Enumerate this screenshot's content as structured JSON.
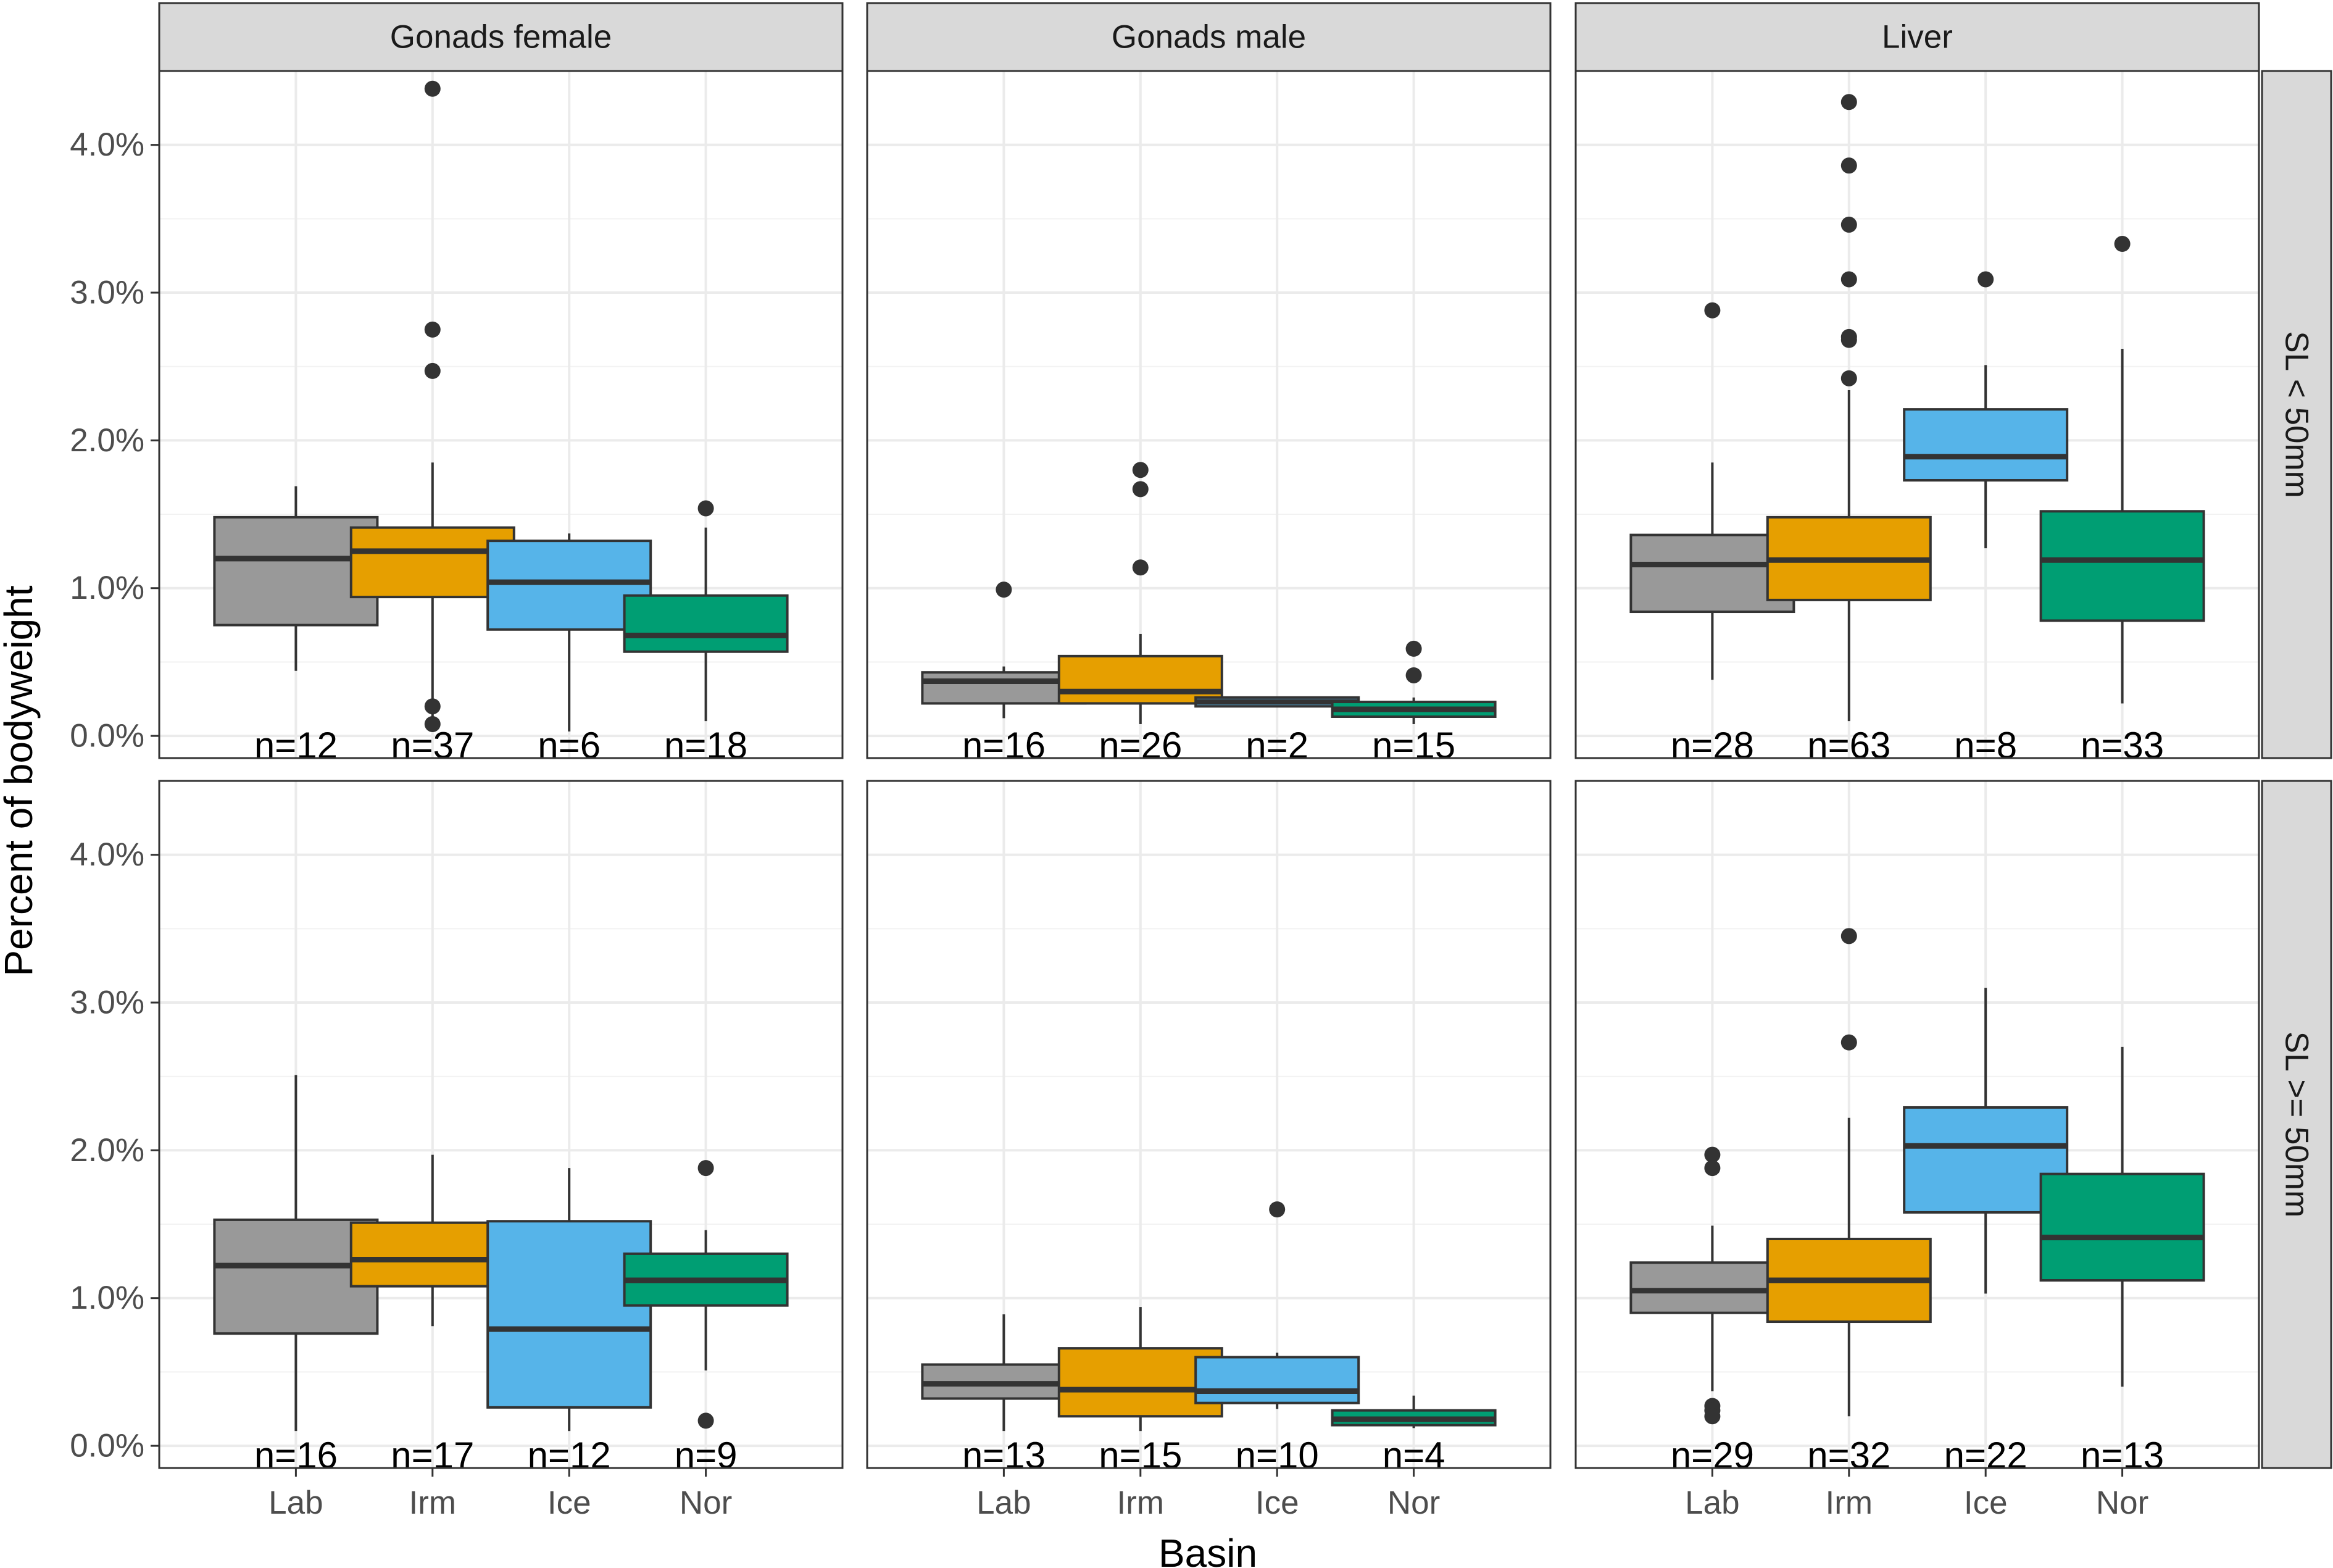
{
  "chart_data": {
    "type": "boxplot",
    "facet_columns": [
      "Gonads female",
      "Gonads male",
      "Liver"
    ],
    "facet_rows": [
      "SL < 50mm",
      "SL >= 50mm"
    ],
    "categories": [
      "Lab",
      "Irm",
      "Ice",
      "Nor"
    ],
    "colors": {
      "Lab": "#999999",
      "Irm": "#E69F00",
      "Ice": "#56B4E9",
      "Nor": "#009E73"
    },
    "xlabel": "Basin",
    "ylabel": "Percent of bodyweight",
    "ylim": [
      -0.15,
      4.5
    ],
    "yticks": [
      0,
      1,
      2,
      3,
      4
    ],
    "ytick_labels": [
      "0.0%",
      "1.0%",
      "2.0%",
      "3.0%",
      "4.0%"
    ],
    "panels": [
      {
        "row": 0,
        "col": 0,
        "boxes": [
          {
            "basin": "Lab",
            "low": 0.44,
            "q1": 0.75,
            "median": 1.2,
            "q3": 1.48,
            "high": 1.69,
            "outliers": [],
            "n_label": "n=12"
          },
          {
            "basin": "Irm",
            "low": 0.12,
            "q1": 0.94,
            "median": 1.25,
            "q3": 1.41,
            "high": 1.85,
            "outliers": [
              4.38,
              2.75,
              2.47,
              0.2,
              0.08
            ],
            "n_label": "n=37"
          },
          {
            "basin": "Ice",
            "low": 0.03,
            "q1": 0.72,
            "median": 1.04,
            "q3": 1.32,
            "high": 1.37,
            "outliers": [],
            "n_label": "n=6"
          },
          {
            "basin": "Nor",
            "low": 0.1,
            "q1": 0.57,
            "median": 0.68,
            "q3": 0.95,
            "high": 1.41,
            "outliers": [
              1.54
            ],
            "n_label": "n=18"
          }
        ]
      },
      {
        "row": 0,
        "col": 1,
        "boxes": [
          {
            "basin": "Lab",
            "low": 0.12,
            "q1": 0.22,
            "median": 0.37,
            "q3": 0.43,
            "high": 0.47,
            "outliers": [
              0.99
            ],
            "n_label": "n=16"
          },
          {
            "basin": "Irm",
            "low": 0.08,
            "q1": 0.22,
            "median": 0.3,
            "q3": 0.54,
            "high": 0.69,
            "outliers": [
              1.8,
              1.67,
              1.14
            ],
            "n_label": "n=26"
          },
          {
            "basin": "Ice",
            "low": 0.2,
            "q1": 0.2,
            "median": 0.23,
            "q3": 0.26,
            "high": 0.26,
            "outliers": [],
            "n_label": "n=2"
          },
          {
            "basin": "Nor",
            "low": 0.08,
            "q1": 0.13,
            "median": 0.18,
            "q3": 0.23,
            "high": 0.26,
            "outliers": [
              0.59,
              0.41
            ],
            "n_label": "n=15"
          }
        ]
      },
      {
        "row": 0,
        "col": 2,
        "boxes": [
          {
            "basin": "Lab",
            "low": 0.38,
            "q1": 0.84,
            "median": 1.16,
            "q3": 1.36,
            "high": 1.85,
            "outliers": [
              2.88
            ],
            "n_label": "n=28"
          },
          {
            "basin": "Irm",
            "low": 0.1,
            "q1": 0.92,
            "median": 1.19,
            "q3": 1.48,
            "high": 2.34,
            "outliers": [
              4.29,
              3.86,
              3.46,
              3.09,
              2.7,
              2.68,
              2.42
            ],
            "n_label": "n=63"
          },
          {
            "basin": "Ice",
            "low": 1.27,
            "q1": 1.73,
            "median": 1.89,
            "q3": 2.21,
            "high": 2.51,
            "outliers": [
              3.09
            ],
            "n_label": "n=8"
          },
          {
            "basin": "Nor",
            "low": 0.22,
            "q1": 0.78,
            "median": 1.19,
            "q3": 1.52,
            "high": 2.62,
            "outliers": [
              3.33
            ],
            "n_label": "n=33"
          }
        ]
      },
      {
        "row": 1,
        "col": 0,
        "boxes": [
          {
            "basin": "Lab",
            "low": 0.1,
            "q1": 0.76,
            "median": 1.22,
            "q3": 1.53,
            "high": 2.51,
            "outliers": [],
            "n_label": "n=16"
          },
          {
            "basin": "Irm",
            "low": 0.81,
            "q1": 1.08,
            "median": 1.26,
            "q3": 1.51,
            "high": 1.97,
            "outliers": [],
            "n_label": "n=17"
          },
          {
            "basin": "Ice",
            "low": 0.1,
            "q1": 0.26,
            "median": 0.79,
            "q3": 1.52,
            "high": 1.88,
            "outliers": [],
            "n_label": "n=12"
          },
          {
            "basin": "Nor",
            "low": 0.51,
            "q1": 0.95,
            "median": 1.12,
            "q3": 1.3,
            "high": 1.46,
            "outliers": [
              1.88,
              0.17
            ],
            "n_label": "n=9"
          }
        ]
      },
      {
        "row": 1,
        "col": 1,
        "boxes": [
          {
            "basin": "Lab",
            "low": 0.1,
            "q1": 0.32,
            "median": 0.42,
            "q3": 0.55,
            "high": 0.89,
            "outliers": [],
            "n_label": "n=13"
          },
          {
            "basin": "Irm",
            "low": 0.1,
            "q1": 0.2,
            "median": 0.38,
            "q3": 0.66,
            "high": 0.94,
            "outliers": [],
            "n_label": "n=15"
          },
          {
            "basin": "Ice",
            "low": 0.25,
            "q1": 0.29,
            "median": 0.37,
            "q3": 0.6,
            "high": 0.63,
            "outliers": [
              1.6
            ],
            "n_label": "n=10"
          },
          {
            "basin": "Nor",
            "low": 0.12,
            "q1": 0.14,
            "median": 0.18,
            "q3": 0.24,
            "high": 0.34,
            "outliers": [],
            "n_label": "n=4"
          }
        ]
      },
      {
        "row": 1,
        "col": 2,
        "boxes": [
          {
            "basin": "Lab",
            "low": 0.37,
            "q1": 0.9,
            "median": 1.05,
            "q3": 1.24,
            "high": 1.49,
            "outliers": [
              1.97,
              1.88,
              0.27,
              0.24,
              0.2
            ],
            "n_label": "n=29"
          },
          {
            "basin": "Irm",
            "low": 0.2,
            "q1": 0.84,
            "median": 1.12,
            "q3": 1.4,
            "high": 2.22,
            "outliers": [
              3.45,
              2.73
            ],
            "n_label": "n=32"
          },
          {
            "basin": "Ice",
            "low": 1.03,
            "q1": 1.58,
            "median": 2.03,
            "q3": 2.29,
            "high": 3.1,
            "outliers": [],
            "n_label": "n=22"
          },
          {
            "basin": "Nor",
            "low": 0.4,
            "q1": 1.12,
            "median": 1.41,
            "q3": 1.84,
            "high": 2.7,
            "outliers": [],
            "n_label": "n=13"
          }
        ]
      }
    ]
  }
}
